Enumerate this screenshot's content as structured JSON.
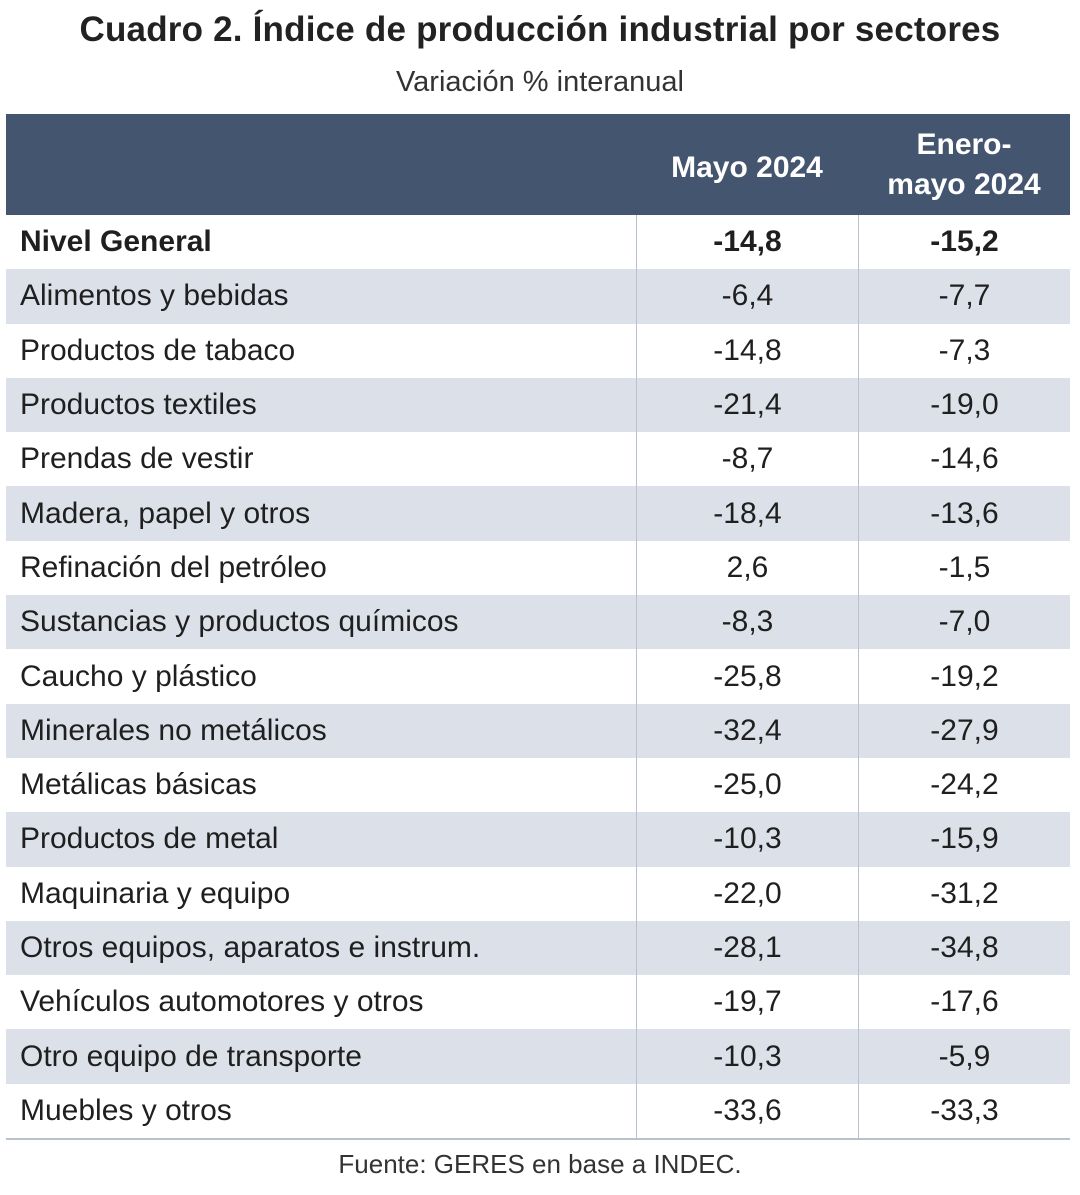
{
  "chart_data": {
    "type": "table",
    "title": "Cuadro 2. Índice de producción industrial por sectores",
    "subtitle": "Variación % interanual",
    "columns": [
      "",
      "Mayo 2024",
      "Enero-\nmayo 2024"
    ],
    "rows": [
      {
        "sector": "Nivel General",
        "mayo": "-14,8",
        "enero_mayo": "-15,2"
      },
      {
        "sector": "Alimentos y bebidas",
        "mayo": "-6,4",
        "enero_mayo": "-7,7"
      },
      {
        "sector": "Productos de tabaco",
        "mayo": "-14,8",
        "enero_mayo": "-7,3"
      },
      {
        "sector": "Productos textiles",
        "mayo": "-21,4",
        "enero_mayo": "-19,0"
      },
      {
        "sector": "Prendas de vestir",
        "mayo": "-8,7",
        "enero_mayo": "-14,6"
      },
      {
        "sector": "Madera, papel y otros",
        "mayo": "-18,4",
        "enero_mayo": "-13,6"
      },
      {
        "sector": "Refinación del petróleo",
        "mayo": "2,6",
        "enero_mayo": "-1,5"
      },
      {
        "sector": "Sustancias y productos químicos",
        "mayo": "-8,3",
        "enero_mayo": "-7,0"
      },
      {
        "sector": "Caucho y plástico",
        "mayo": "-25,8",
        "enero_mayo": "-19,2"
      },
      {
        "sector": "Minerales no metálicos",
        "mayo": "-32,4",
        "enero_mayo": "-27,9"
      },
      {
        "sector": "Metálicas básicas",
        "mayo": "-25,0",
        "enero_mayo": "-24,2"
      },
      {
        "sector": "Productos de metal",
        "mayo": "-10,3",
        "enero_mayo": "-15,9"
      },
      {
        "sector": "Maquinaria y equipo",
        "mayo": "-22,0",
        "enero_mayo": "-31,2"
      },
      {
        "sector": "Otros equipos, aparatos e instrum.",
        "mayo": "-28,1",
        "enero_mayo": "-34,8"
      },
      {
        "sector": "Vehículos automotores y otros",
        "mayo": "-19,7",
        "enero_mayo": "-17,6"
      },
      {
        "sector": "Otro equipo de transporte",
        "mayo": "-10,3",
        "enero_mayo": "-5,9"
      },
      {
        "sector": "Muebles y otros",
        "mayo": "-33,6",
        "enero_mayo": "-33,3"
      }
    ],
    "source": "Fuente: GERES en base a INDEC.",
    "colors": {
      "header_bg": "#445570",
      "header_text": "#ffffff",
      "alt_row_bg": "#dce1e9"
    }
  }
}
